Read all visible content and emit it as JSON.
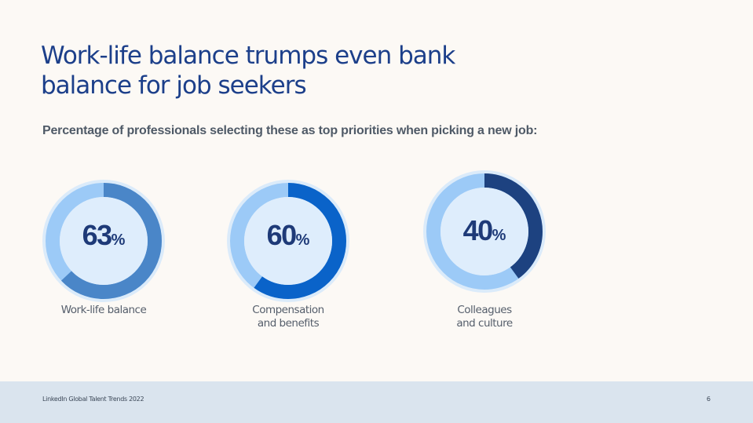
{
  "slide": {
    "title": "Work-life balance trumps even bank balance for job seekers",
    "subtitle": "Percentage of professionals selecting these as top priorities when picking a new job:"
  },
  "chart_data": [
    {
      "type": "pie",
      "style": "donut",
      "title": "Work-life balance",
      "value": 63,
      "unit": "%",
      "colors": {
        "filled": "#4a86c8",
        "remaining": "#9ccaf7",
        "ring_outline": "#dbebfa",
        "center": "#deedfc"
      }
    },
    {
      "type": "pie",
      "style": "donut",
      "title": "Compensation and benefits",
      "value": 60,
      "unit": "%",
      "colors": {
        "filled": "#0a63c9",
        "remaining": "#9ccaf7",
        "ring_outline": "#dbebfa",
        "center": "#deedfc"
      }
    },
    {
      "type": "pie",
      "style": "donut",
      "title": "Colleagues and culture",
      "value": 40,
      "unit": "%",
      "colors": {
        "filled": "#1d4280",
        "remaining": "#9ccaf7",
        "ring_outline": "#dbebfa",
        "center": "#deedfc"
      }
    }
  ],
  "labels": {
    "work_life": [
      "Work-life balance"
    ],
    "compensation": [
      "Compensation",
      "and benefits"
    ],
    "colleagues": [
      "Colleagues",
      "and culture"
    ]
  },
  "footer": {
    "source": "LinkedIn Global Talent Trends 2022",
    "page_number": "6"
  }
}
